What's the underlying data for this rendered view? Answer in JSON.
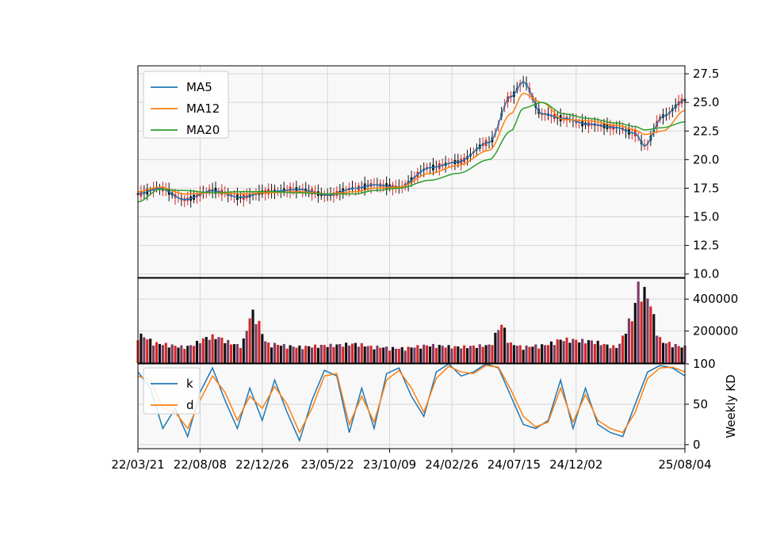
{
  "chart_data": [
    {
      "panel": "price",
      "type": "candlestick",
      "ylim": [
        9.7,
        28.2
      ],
      "yticks": [
        "10.0",
        "12.5",
        "15.0",
        "17.5",
        "20.0",
        "22.5",
        "25.0",
        "27.5"
      ],
      "ytick_values": [
        10.0,
        12.5,
        15.0,
        17.5,
        20.0,
        22.5,
        25.0,
        27.5
      ],
      "grid": true,
      "legend": {
        "placement": "top-left",
        "entries": [
          "MA5",
          "MA12",
          "MA20"
        ]
      },
      "series": [
        {
          "name": "MA5",
          "color": "#1f77b4",
          "x": [
            "22/03/21",
            "22/05/09",
            "22/07/04",
            "22/09/05",
            "22/11/07",
            "23/01/09",
            "23/03/20",
            "23/05/22",
            "23/07/24",
            "23/09/04",
            "23/10/30",
            "24/01/08",
            "24/03/11",
            "24/05/20",
            "24/07/08",
            "24/08/05",
            "24/09/16",
            "24/11/04",
            "24/12/30",
            "25/03/03",
            "25/04/14",
            "25/05/05",
            "25/06/16",
            "25/08/04"
          ],
          "values": [
            17.0,
            17.5,
            16.5,
            17.3,
            16.7,
            17.2,
            17.4,
            16.9,
            17.5,
            17.8,
            17.6,
            19.3,
            19.8,
            21.5,
            25.5,
            26.8,
            24.0,
            23.6,
            23.1,
            22.8,
            22.3,
            21.2,
            23.8,
            25.2
          ]
        },
        {
          "name": "MA12",
          "color": "#ff7f0e",
          "x": [
            "22/03/21",
            "22/05/09",
            "22/07/04",
            "22/09/05",
            "22/11/07",
            "23/01/09",
            "23/03/20",
            "23/05/22",
            "23/07/24",
            "23/09/04",
            "23/10/30",
            "24/01/08",
            "24/03/11",
            "24/05/20",
            "24/07/08",
            "24/08/05",
            "24/09/16",
            "24/11/04",
            "24/12/30",
            "25/03/03",
            "25/04/14",
            "25/05/05",
            "25/06/16",
            "25/08/04"
          ],
          "values": [
            17.2,
            17.6,
            17.0,
            17.1,
            17.0,
            17.1,
            17.2,
            17.0,
            17.2,
            17.5,
            17.6,
            18.8,
            19.5,
            20.8,
            24.0,
            25.8,
            25.0,
            23.5,
            23.4,
            23.0,
            22.6,
            22.2,
            22.5,
            24.3
          ]
        },
        {
          "name": "MA20",
          "color": "#2ca02c",
          "x": [
            "22/03/21",
            "22/05/09",
            "22/07/04",
            "22/09/05",
            "22/11/07",
            "23/01/09",
            "23/03/20",
            "23/05/22",
            "23/07/24",
            "23/09/04",
            "23/10/30",
            "24/01/08",
            "24/03/11",
            "24/05/20",
            "24/07/08",
            "24/08/05",
            "24/09/16",
            "24/11/04",
            "24/12/30",
            "25/03/03",
            "25/04/14",
            "25/05/05",
            "25/06/16",
            "25/08/04"
          ],
          "values": [
            16.3,
            17.4,
            17.3,
            17.1,
            17.2,
            17.2,
            17.1,
            17.0,
            17.0,
            17.3,
            17.5,
            18.2,
            18.8,
            20.0,
            22.5,
            24.5,
            25.0,
            24.0,
            23.6,
            23.2,
            22.9,
            22.6,
            22.8,
            23.3
          ]
        }
      ]
    },
    {
      "panel": "volume",
      "type": "bar",
      "ylim": [
        0,
        530000
      ],
      "yticks": [
        "200000",
        "400000"
      ],
      "ytick_values": [
        200000,
        400000
      ],
      "grid": true,
      "x": [
        "22/03/21",
        "22/05/09",
        "22/07/04",
        "22/09/05",
        "22/11/07",
        "22/12/05",
        "23/01/09",
        "23/03/20",
        "23/05/22",
        "23/07/24",
        "23/09/04",
        "23/10/30",
        "24/01/08",
        "24/03/11",
        "24/05/20",
        "24/06/17",
        "24/07/08",
        "24/08/05",
        "24/09/16",
        "24/11/04",
        "24/12/30",
        "25/03/03",
        "25/04/07",
        "25/04/21",
        "25/05/05",
        "25/06/16",
        "25/08/04"
      ],
      "values": [
        190000,
        130000,
        110000,
        180000,
        120000,
        340000,
        130000,
        110000,
        120000,
        130000,
        110000,
        100000,
        120000,
        110000,
        120000,
        260000,
        130000,
        110000,
        120000,
        160000,
        150000,
        110000,
        300000,
        520000,
        480000,
        140000,
        110000
      ]
    },
    {
      "panel": "kd",
      "type": "line",
      "ylabel": "Weekly KD",
      "ylim": [
        -5,
        100
      ],
      "yticks": [
        "0",
        "50",
        "100"
      ],
      "ytick_values": [
        0,
        50,
        100
      ],
      "grid": true,
      "legend": {
        "placement": "top-left",
        "entries": [
          "k",
          "d"
        ]
      },
      "xticks": [
        "22/03/21",
        "22/08/08",
        "22/12/26",
        "23/05/22",
        "23/10/09",
        "24/02/26",
        "24/07/15",
        "24/12/02",
        "25/08/04"
      ],
      "series": [
        {
          "name": "k",
          "color": "#1f77b4",
          "x": [
            "22/03/21",
            "22/04/18",
            "22/05/16",
            "22/06/13",
            "22/07/11",
            "22/08/08",
            "22/09/05",
            "22/10/03",
            "22/10/31",
            "22/11/28",
            "22/12/26",
            "23/01/23",
            "23/02/20",
            "23/03/20",
            "23/04/17",
            "23/05/15",
            "23/06/12",
            "23/07/10",
            "23/08/07",
            "23/09/04",
            "23/10/02",
            "23/10/30",
            "23/11/27",
            "23/12/25",
            "24/01/22",
            "24/02/19",
            "24/03/18",
            "24/04/15",
            "24/05/13",
            "24/06/10",
            "24/07/08",
            "24/08/05",
            "24/09/02",
            "24/09/30",
            "24/10/28",
            "24/11/25",
            "24/12/23",
            "25/01/20",
            "25/02/17",
            "25/03/17",
            "25/04/14",
            "25/05/12",
            "25/06/09",
            "25/07/07",
            "25/08/04"
          ],
          "values": [
            90,
            70,
            20,
            45,
            10,
            65,
            95,
            55,
            20,
            70,
            30,
            80,
            40,
            5,
            55,
            92,
            85,
            15,
            70,
            20,
            88,
            95,
            60,
            35,
            90,
            100,
            85,
            90,
            100,
            95,
            60,
            25,
            20,
            30,
            80,
            20,
            70,
            25,
            15,
            10,
            50,
            90,
            98,
            95,
            85
          ]
        },
        {
          "name": "d",
          "color": "#ff7f0e",
          "x": [
            "22/03/21",
            "22/04/18",
            "22/05/16",
            "22/06/13",
            "22/07/11",
            "22/08/08",
            "22/09/05",
            "22/10/03",
            "22/10/31",
            "22/11/28",
            "22/12/26",
            "23/01/23",
            "23/02/20",
            "23/03/20",
            "23/04/17",
            "23/05/15",
            "23/06/12",
            "23/07/10",
            "23/08/07",
            "23/09/04",
            "23/10/02",
            "23/10/30",
            "23/11/27",
            "23/12/25",
            "24/01/22",
            "24/02/19",
            "24/03/18",
            "24/04/15",
            "24/05/13",
            "24/06/10",
            "24/07/08",
            "24/08/05",
            "24/09/02",
            "24/09/30",
            "24/10/28",
            "24/11/25",
            "24/12/23",
            "25/01/20",
            "25/02/17",
            "25/03/17",
            "25/04/14",
            "25/05/12",
            "25/06/09",
            "25/07/07",
            "25/08/04"
          ],
          "values": [
            85,
            80,
            45,
            40,
            20,
            55,
            85,
            65,
            30,
            60,
            45,
            72,
            50,
            15,
            45,
            85,
            88,
            25,
            60,
            28,
            80,
            92,
            70,
            40,
            82,
            97,
            90,
            88,
            98,
            96,
            68,
            35,
            22,
            28,
            70,
            28,
            62,
            30,
            20,
            15,
            40,
            82,
            95,
            96,
            90
          ]
        }
      ]
    }
  ]
}
